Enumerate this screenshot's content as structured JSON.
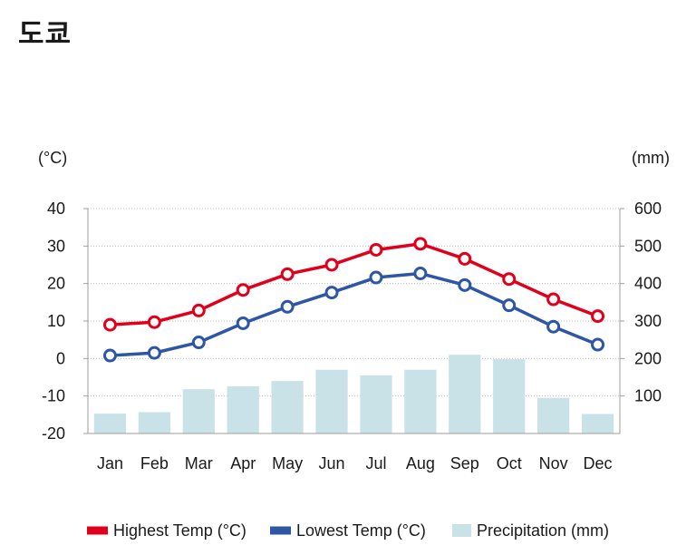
{
  "page": {
    "title": "도쿄"
  },
  "chart_data": {
    "type": "bar+line",
    "title": "도쿄",
    "categories": [
      "Jan",
      "Feb",
      "Mar",
      "Apr",
      "May",
      "Jun",
      "Jul",
      "Aug",
      "Sep",
      "Oct",
      "Nov",
      "Dec"
    ],
    "left_axis": {
      "unit_label": "(°C)",
      "ylim": [
        -20,
        40
      ],
      "ticks": [
        40,
        30,
        20,
        10,
        0,
        -10,
        -20
      ]
    },
    "right_axis": {
      "unit_label": "(mm)",
      "ylim": [
        0,
        600
      ],
      "ticks": [
        600,
        500,
        400,
        300,
        200,
        100
      ]
    },
    "series": [
      {
        "name": "Highest Temp (°C)",
        "kind": "line",
        "axis": "left",
        "color": "#e0001b",
        "values": [
          9.0,
          9.7,
          12.8,
          18.3,
          22.5,
          25.0,
          29.0,
          30.6,
          26.6,
          21.2,
          15.8,
          11.3
        ]
      },
      {
        "name": "Lowest Temp (°C)",
        "kind": "line",
        "axis": "left",
        "color": "#2d56a5",
        "values": [
          0.8,
          1.5,
          4.3,
          9.4,
          13.8,
          17.6,
          21.6,
          22.7,
          19.6,
          14.2,
          8.5,
          3.7
        ]
      },
      {
        "name": "Precipitation (mm)",
        "kind": "bar",
        "axis": "right",
        "color": "#c9e2e7",
        "values": [
          53,
          57,
          118,
          126,
          140,
          170,
          155,
          170,
          210,
          198,
          95,
          52
        ]
      }
    ],
    "legend_position": "bottom",
    "grid": true
  }
}
